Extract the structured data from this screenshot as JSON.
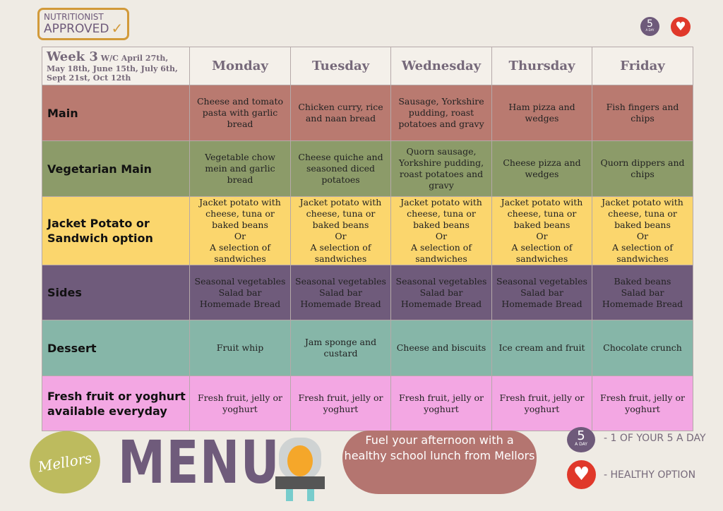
{
  "badge": {
    "line1": "NUTRITIONIST",
    "line2": "APPROVED"
  },
  "icons": {
    "five_a_day": {
      "num": "5",
      "label": "A DAY"
    },
    "heart": "heart-icon"
  },
  "week": {
    "title": "Week 3",
    "dates": "W/C April 27th, May 18th, June 15th, July 6th, Sept 21st, Oct 12th"
  },
  "days": [
    "Monday",
    "Tuesday",
    "Wednesday",
    "Thursday",
    "Friday"
  ],
  "rows": [
    {
      "label": "Main",
      "items": [
        "Cheese and tomato pasta with garlic bread",
        "Chicken curry, rice and naan bread",
        "Sausage, Yorkshire pudding, roast potatoes and gravy",
        "Ham pizza and wedges",
        "Fish fingers and chips"
      ]
    },
    {
      "label": "Vegetarian Main",
      "items": [
        "Vegetable chow mein and garlic bread",
        "Cheese quiche and seasoned diced potatoes",
        "Quorn sausage, Yorkshire pudding, roast potatoes and gravy",
        "Cheese pizza and wedges",
        "Quorn dippers and chips"
      ]
    },
    {
      "label": "Jacket Potato or Sandwich option",
      "items": [
        "Jacket potato with cheese, tuna or baked beans\nOr\nA selection of sandwiches",
        "Jacket potato with cheese, tuna or baked beans\nOr\nA selection of sandwiches",
        "Jacket potato with cheese, tuna or baked beans\nOr\nA selection of sandwiches",
        "Jacket potato with cheese, tuna or baked beans\nOr\nA selection of sandwiches",
        "Jacket potato with cheese, tuna or baked beans\nOr\nA selection of sandwiches"
      ]
    },
    {
      "label": "Sides",
      "items": [
        "Seasonal vegetables\nSalad bar\nHomemade Bread",
        "Seasonal vegetables\nSalad bar\nHomemade Bread",
        "Seasonal vegetables\nSalad bar\nHomemade Bread",
        "Seasonal vegetables\nSalad bar\nHomemade Bread",
        "Baked beans\nSalad bar\nHomemade Bread"
      ]
    },
    {
      "label": "Dessert",
      "items": [
        "Fruit whip",
        "Jam sponge and custard",
        "Cheese and biscuits",
        "Ice cream and fruit",
        "Chocolate crunch"
      ]
    },
    {
      "label": "Fresh fruit or yoghurt available everyday",
      "items": [
        "Fresh fruit, jelly or yoghurt",
        "Fresh fruit, jelly or yoghurt",
        "Fresh fruit, jelly or yoghurt",
        "Fresh fruit, jelly or yoghurt",
        "Fresh fruit, jelly or yoghurt"
      ]
    }
  ],
  "footer": {
    "logo": "Mellors",
    "menu": "MENU",
    "bubble": "Fuel your afternoon with a healthy school lunch from Mellors",
    "legend_five": "- 1 OF YOUR 5 A DAY",
    "legend_heart": "- HEALTHY OPTION"
  }
}
